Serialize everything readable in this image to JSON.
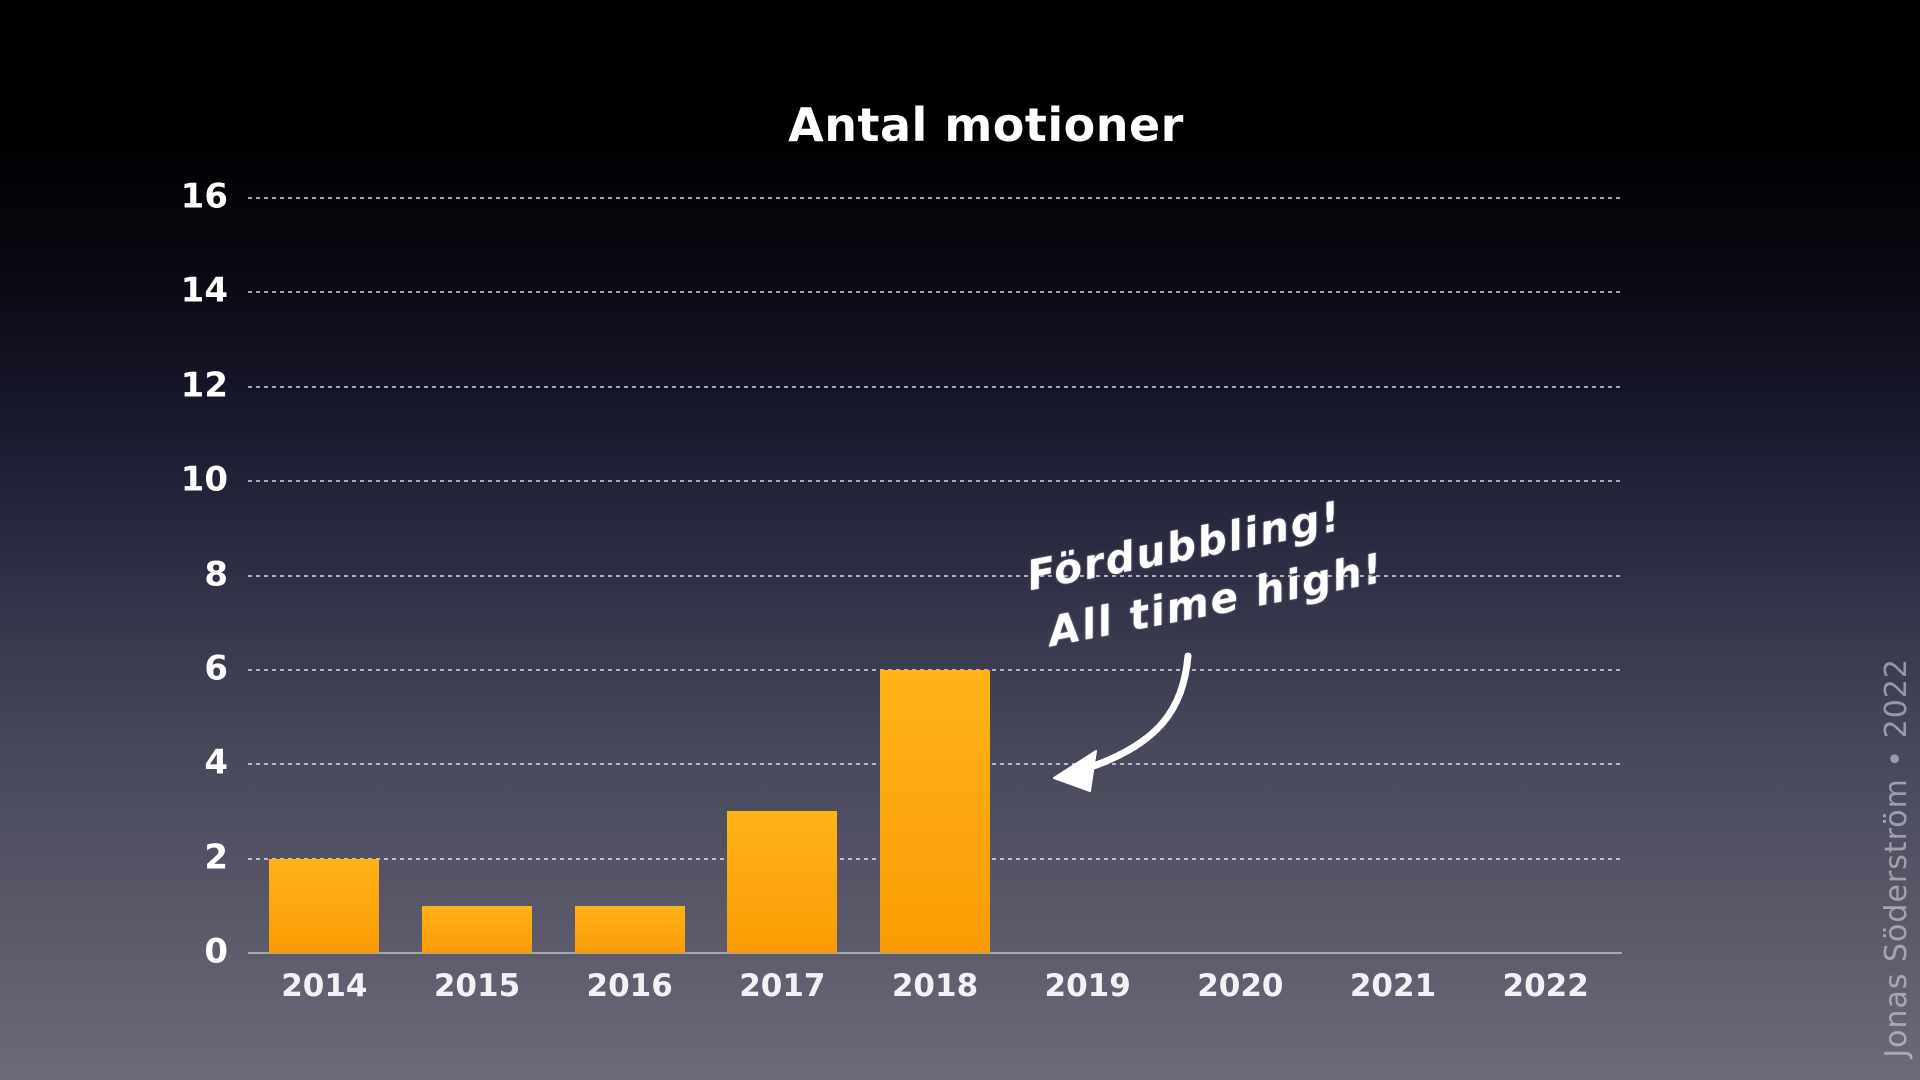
{
  "chart_data": {
    "type": "bar",
    "title": "Antal motioner",
    "categories": [
      "2014",
      "2015",
      "2016",
      "2017",
      "2018",
      "2019",
      "2020",
      "2021",
      "2022"
    ],
    "values": [
      2,
      1,
      1,
      3,
      6,
      0,
      0,
      0,
      0
    ],
    "xlabel": "",
    "ylabel": "",
    "ylim": [
      0,
      16
    ],
    "yticks": [
      0,
      2,
      4,
      6,
      8,
      10,
      12,
      14,
      16
    ],
    "grid": "horizontal-dotted",
    "legend": "none",
    "colors": {
      "bar_top": "#ffb318",
      "bar_bottom": "#fb9b04",
      "gridline": "rgba(255,255,255,0.62)",
      "axis_line": "#a8a8b3",
      "label_text": "#ffffff",
      "background_top": "#000000",
      "background_bottom": "#6a6a79"
    }
  },
  "annotation": {
    "line1": "Fördubbling!",
    "line2": "All time high!",
    "arrow": "curved-arrow-pointing-to-2018-bar"
  },
  "watermark": {
    "text": "Jonas Söderström • 2022"
  }
}
